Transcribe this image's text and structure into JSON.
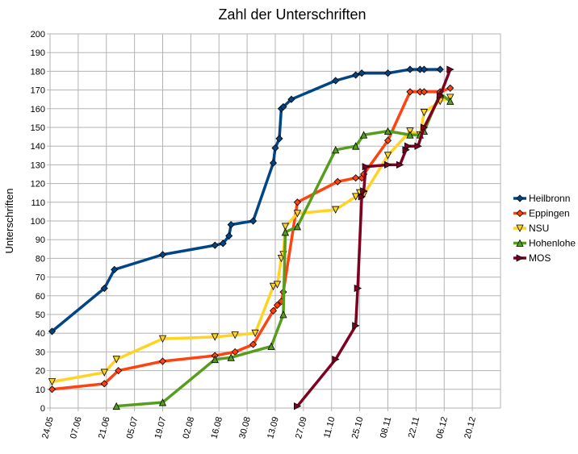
{
  "chart_data": {
    "type": "line",
    "title": "Zahl der Unterschriften",
    "xlabel": "",
    "ylabel": "Unterschriften",
    "ylim": [
      0,
      200
    ],
    "y_tick_step": 10,
    "x_ticks": [
      "24.05",
      "07.06",
      "21.06",
      "05.07",
      "19.07",
      "02.08",
      "16.08",
      "30.08",
      "13.09",
      "27.09",
      "11.10",
      "25.10",
      "08.11",
      "22.11",
      "06.12",
      "20.12"
    ],
    "x_domain_days": [
      0,
      224
    ],
    "grid": true,
    "legend_position": "right",
    "series": [
      {
        "name": "Heilbronn",
        "color": "#004586",
        "marker": "diamond",
        "x": [
          1,
          27,
          32,
          56,
          82,
          86,
          89,
          90,
          101,
          111,
          112,
          114,
          115,
          116,
          120,
          142,
          152,
          155,
          168,
          179,
          184,
          186,
          194
        ],
        "values": [
          41,
          64,
          74,
          82,
          87,
          88,
          92,
          98,
          100,
          131,
          139,
          144,
          160,
          161,
          165,
          175,
          178,
          179,
          179,
          181,
          181,
          181,
          181
        ]
      },
      {
        "name": "Eppingen",
        "color": "#ff420e",
        "marker": "diamond",
        "x": [
          1,
          27,
          34,
          56,
          82,
          92,
          101,
          111,
          113,
          115,
          116,
          123,
          143,
          152,
          155,
          156,
          168,
          179,
          184,
          186,
          194,
          199
        ],
        "values": [
          10,
          13,
          20,
          25,
          28,
          30,
          34,
          52,
          55,
          57,
          62,
          110,
          121,
          123,
          123,
          125,
          143,
          169,
          169,
          169,
          169,
          171
        ]
      },
      {
        "name": "NSU",
        "color": "#ffd320",
        "marker": "triangle-down",
        "x": [
          1,
          27,
          33,
          56,
          82,
          92,
          102,
          111,
          113,
          115,
          116,
          117,
          123,
          142,
          152,
          154,
          156,
          168,
          179,
          184,
          186,
          194,
          199
        ],
        "values": [
          14,
          19,
          26,
          37,
          38,
          39,
          40,
          65,
          66,
          80,
          82,
          97,
          104,
          106,
          113,
          115,
          114,
          135,
          148,
          146,
          158,
          164,
          166
        ]
      },
      {
        "name": "Hohenlohe",
        "color": "#579d1c",
        "marker": "triangle-up",
        "x": [
          33,
          56,
          82,
          90,
          110,
          116,
          117,
          123,
          142,
          152,
          156,
          168,
          179,
          184,
          186,
          194,
          199
        ],
        "values": [
          1,
          3,
          26,
          27,
          33,
          50,
          94,
          97,
          138,
          140,
          146,
          148,
          146,
          146,
          148,
          168,
          164
        ]
      },
      {
        "name": "MOS",
        "color": "#7e0021",
        "marker": "triangle-right",
        "x": [
          123,
          142,
          152,
          153,
          155,
          156,
          157,
          168,
          174,
          177,
          178,
          183,
          186,
          194,
          199
        ],
        "values": [
          1,
          26,
          44,
          64,
          113,
          116,
          129,
          130,
          130,
          138,
          140,
          140,
          150,
          167,
          181
        ]
      }
    ]
  }
}
